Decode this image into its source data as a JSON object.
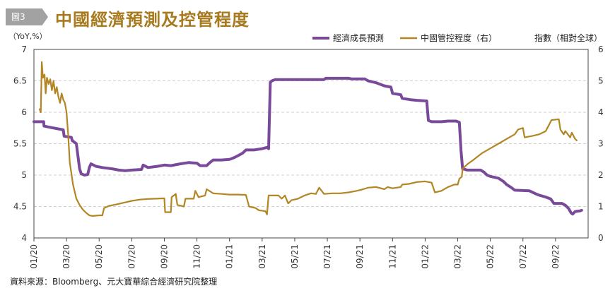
{
  "header": {
    "badge": "圖3",
    "title": "中國經濟預測及控管程度"
  },
  "source": "資料來源：Bloomberg、元大寶華綜合經濟研究院整理",
  "colors": {
    "forecast": "#7a4a9a",
    "control": "#b38624",
    "title": "#a87a1e",
    "grid": "#cfcfcf"
  },
  "chart_data": {
    "type": "line",
    "title": "中國經濟預測及控管程度",
    "y_left": {
      "label": "（YoY,%）",
      "min": 4,
      "max": 7,
      "ticks": [
        "4",
        "4.5",
        "5",
        "5.5",
        "6",
        "6.5",
        "7"
      ]
    },
    "y_right": {
      "label": "指數（相對全球）",
      "min": 0,
      "max": 6,
      "ticks": [
        "0",
        "1",
        "2",
        "3",
        "4",
        "5",
        "6"
      ]
    },
    "x_range": [
      "2020-01",
      "2022-11"
    ],
    "x_ticks": [
      {
        "label": "01/20",
        "t": 0
      },
      {
        "label": "03/20",
        "t": 2
      },
      {
        "label": "05/20",
        "t": 4
      },
      {
        "label": "07/20",
        "t": 6
      },
      {
        "label": "09/20",
        "t": 8
      },
      {
        "label": "11/20",
        "t": 10
      },
      {
        "label": "01/21",
        "t": 12
      },
      {
        "label": "03/21",
        "t": 14
      },
      {
        "label": "05/21",
        "t": 16
      },
      {
        "label": "07/21",
        "t": 18
      },
      {
        "label": "09/21",
        "t": 20
      },
      {
        "label": "11/21",
        "t": 22
      },
      {
        "label": "01/22",
        "t": 24
      },
      {
        "label": "03/22",
        "t": 26
      },
      {
        "label": "05/22",
        "t": 28
      },
      {
        "label": "07/22",
        "t": 30
      },
      {
        "label": "09/22",
        "t": 32
      }
    ],
    "grid": "horizontal dashed",
    "legend": "top-right",
    "series": [
      {
        "name": "經濟成長預測",
        "axis": "left",
        "color": "#7a4a9a",
        "points": [
          [
            0,
            5.85
          ],
          [
            0.6,
            5.85
          ],
          [
            0.62,
            5.78
          ],
          [
            1.0,
            5.76
          ],
          [
            1.4,
            5.74
          ],
          [
            1.8,
            5.72
          ],
          [
            1.85,
            5.62
          ],
          [
            2.3,
            5.6
          ],
          [
            2.35,
            5.55
          ],
          [
            2.6,
            5.5
          ],
          [
            2.7,
            5.3
          ],
          [
            2.8,
            5.1
          ],
          [
            2.9,
            5.02
          ],
          [
            3.1,
            5.0
          ],
          [
            3.3,
            5.01
          ],
          [
            3.4,
            5.12
          ],
          [
            3.5,
            5.18
          ],
          [
            3.8,
            5.14
          ],
          [
            4.2,
            5.12
          ],
          [
            4.8,
            5.1
          ],
          [
            5.2,
            5.08
          ],
          [
            5.6,
            5.07
          ],
          [
            6.0,
            5.08
          ],
          [
            6.6,
            5.09
          ],
          [
            6.7,
            5.16
          ],
          [
            7.0,
            5.12
          ],
          [
            7.6,
            5.14
          ],
          [
            8.0,
            5.16
          ],
          [
            8.4,
            5.15
          ],
          [
            9.0,
            5.18
          ],
          [
            9.5,
            5.2
          ],
          [
            10.0,
            5.19
          ],
          [
            10.2,
            5.15
          ],
          [
            10.6,
            5.15
          ],
          [
            10.8,
            5.2
          ],
          [
            11.0,
            5.24
          ],
          [
            11.5,
            5.24
          ],
          [
            12.0,
            5.25
          ],
          [
            12.3,
            5.28
          ],
          [
            12.6,
            5.32
          ],
          [
            12.8,
            5.35
          ],
          [
            13.0,
            5.4
          ],
          [
            13.5,
            5.4
          ],
          [
            14.0,
            5.42
          ],
          [
            14.3,
            5.44
          ],
          [
            14.4,
            5.42
          ],
          [
            14.5,
            6.48
          ],
          [
            14.6,
            6.5
          ],
          [
            14.8,
            6.52
          ],
          [
            16.0,
            6.52
          ],
          [
            17.0,
            6.52
          ],
          [
            17.8,
            6.52
          ],
          [
            17.9,
            6.54
          ],
          [
            18.5,
            6.54
          ],
          [
            19.3,
            6.54
          ],
          [
            19.5,
            6.53
          ],
          [
            20.3,
            6.53
          ],
          [
            20.5,
            6.5
          ],
          [
            21.0,
            6.47
          ],
          [
            21.5,
            6.42
          ],
          [
            21.9,
            6.4
          ],
          [
            22.0,
            6.3
          ],
          [
            22.5,
            6.28
          ],
          [
            22.6,
            6.22
          ],
          [
            23.1,
            6.2
          ],
          [
            23.5,
            6.19
          ],
          [
            24.1,
            6.18
          ],
          [
            24.2,
            5.87
          ],
          [
            24.4,
            5.85
          ],
          [
            25.0,
            5.85
          ],
          [
            25.4,
            5.86
          ],
          [
            25.9,
            5.86
          ],
          [
            26.1,
            5.84
          ],
          [
            26.2,
            5.4
          ],
          [
            26.3,
            5.1
          ],
          [
            26.6,
            5.08
          ],
          [
            27.4,
            5.08
          ],
          [
            27.6,
            5.05
          ],
          [
            27.8,
            5.0
          ],
          [
            28.0,
            4.98
          ],
          [
            28.5,
            4.95
          ],
          [
            28.8,
            4.9
          ],
          [
            29.0,
            4.85
          ],
          [
            29.3,
            4.8
          ],
          [
            29.5,
            4.76
          ],
          [
            30.4,
            4.75
          ],
          [
            30.8,
            4.7
          ],
          [
            31.0,
            4.68
          ],
          [
            31.4,
            4.65
          ],
          [
            31.7,
            4.62
          ],
          [
            31.9,
            4.55
          ],
          [
            32.4,
            4.55
          ],
          [
            32.6,
            4.52
          ],
          [
            32.8,
            4.47
          ],
          [
            32.95,
            4.4
          ],
          [
            33.05,
            4.38
          ],
          [
            33.2,
            4.42
          ],
          [
            33.5,
            4.43
          ],
          [
            33.6,
            4.44
          ]
        ]
      },
      {
        "name": "中國管控程度（右）",
        "axis": "right",
        "color": "#b38624",
        "points": [
          [
            0.35,
            4.1
          ],
          [
            0.42,
            4.0
          ],
          [
            0.48,
            5.6
          ],
          [
            0.55,
            5.1
          ],
          [
            0.65,
            5.2
          ],
          [
            0.72,
            4.6
          ],
          [
            0.8,
            5.1
          ],
          [
            0.9,
            4.9
          ],
          [
            1.0,
            5.05
          ],
          [
            1.1,
            4.7
          ],
          [
            1.2,
            5.0
          ],
          [
            1.3,
            4.6
          ],
          [
            1.4,
            4.8
          ],
          [
            1.5,
            4.5
          ],
          [
            1.6,
            4.3
          ],
          [
            1.7,
            4.6
          ],
          [
            1.8,
            4.4
          ],
          [
            1.9,
            4.3
          ],
          [
            2.0,
            4.0
          ],
          [
            2.1,
            3.3
          ],
          [
            2.2,
            2.4
          ],
          [
            2.4,
            1.7
          ],
          [
            2.6,
            1.25
          ],
          [
            2.8,
            1.05
          ],
          [
            3.0,
            0.9
          ],
          [
            3.2,
            0.8
          ],
          [
            3.4,
            0.72
          ],
          [
            3.6,
            0.7
          ],
          [
            4.0,
            0.72
          ],
          [
            4.2,
            0.72
          ],
          [
            4.3,
            0.95
          ],
          [
            4.6,
            1.02
          ],
          [
            5.0,
            1.06
          ],
          [
            5.5,
            1.12
          ],
          [
            6.0,
            1.18
          ],
          [
            6.5,
            1.22
          ],
          [
            7.0,
            1.24
          ],
          [
            7.5,
            1.25
          ],
          [
            8.0,
            1.26
          ],
          [
            8.05,
            0.82
          ],
          [
            8.4,
            0.82
          ],
          [
            8.45,
            1.3
          ],
          [
            8.7,
            1.4
          ],
          [
            8.8,
            1.05
          ],
          [
            9.2,
            1.0
          ],
          [
            9.3,
            1.25
          ],
          [
            9.8,
            1.25
          ],
          [
            9.9,
            1.5
          ],
          [
            10.1,
            1.3
          ],
          [
            10.5,
            1.35
          ],
          [
            10.6,
            1.55
          ],
          [
            11.0,
            1.42
          ],
          [
            11.5,
            1.4
          ],
          [
            12.0,
            1.38
          ],
          [
            12.5,
            1.38
          ],
          [
            13.0,
            1.37
          ],
          [
            13.2,
            1.0
          ],
          [
            13.6,
            0.95
          ],
          [
            13.8,
            0.88
          ],
          [
            14.2,
            0.85
          ],
          [
            14.3,
            0.75
          ],
          [
            14.4,
            1.35
          ],
          [
            15.0,
            1.35
          ],
          [
            15.2,
            1.25
          ],
          [
            15.4,
            1.35
          ],
          [
            15.6,
            1.1
          ],
          [
            15.8,
            1.2
          ],
          [
            16.2,
            1.25
          ],
          [
            16.6,
            1.35
          ],
          [
            17.0,
            1.42
          ],
          [
            17.3,
            1.4
          ],
          [
            17.5,
            1.6
          ],
          [
            17.8,
            1.4
          ],
          [
            18.3,
            1.42
          ],
          [
            18.8,
            1.42
          ],
          [
            19.3,
            1.45
          ],
          [
            19.8,
            1.5
          ],
          [
            20.2,
            1.55
          ],
          [
            20.5,
            1.6
          ],
          [
            21.0,
            1.62
          ],
          [
            21.5,
            1.55
          ],
          [
            21.7,
            1.62
          ],
          [
            22.0,
            1.58
          ],
          [
            22.5,
            1.62
          ],
          [
            22.6,
            1.7
          ],
          [
            23.0,
            1.72
          ],
          [
            23.5,
            1.78
          ],
          [
            24.0,
            1.8
          ],
          [
            24.4,
            1.76
          ],
          [
            24.6,
            1.45
          ],
          [
            25.0,
            1.5
          ],
          [
            25.4,
            1.62
          ],
          [
            25.8,
            1.7
          ],
          [
            26.0,
            1.7
          ],
          [
            26.1,
            1.88
          ],
          [
            26.25,
            1.95
          ],
          [
            26.3,
            2.2
          ],
          [
            26.6,
            2.35
          ],
          [
            27.0,
            2.5
          ],
          [
            27.5,
            2.7
          ],
          [
            28.0,
            2.85
          ],
          [
            28.5,
            3.0
          ],
          [
            29.0,
            3.15
          ],
          [
            29.5,
            3.3
          ],
          [
            29.7,
            3.45
          ],
          [
            30.0,
            3.5
          ],
          [
            30.1,
            3.2
          ],
          [
            30.6,
            3.25
          ],
          [
            31.0,
            3.3
          ],
          [
            31.4,
            3.4
          ],
          [
            31.6,
            3.6
          ],
          [
            31.75,
            3.75
          ],
          [
            32.2,
            3.78
          ],
          [
            32.3,
            3.45
          ],
          [
            32.5,
            3.3
          ],
          [
            32.6,
            3.4
          ],
          [
            32.9,
            3.2
          ],
          [
            33.0,
            3.35
          ],
          [
            33.2,
            3.15
          ],
          [
            33.3,
            3.1
          ]
        ]
      }
    ]
  }
}
